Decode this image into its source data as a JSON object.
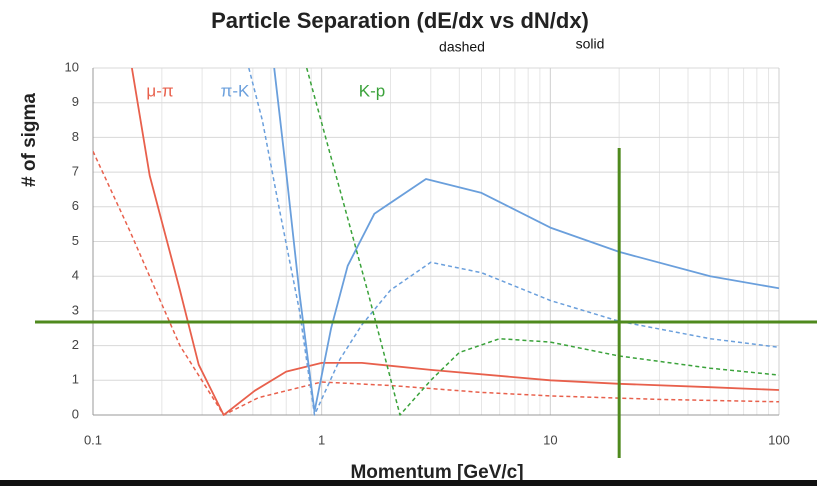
{
  "chart_data": {
    "type": "line",
    "title": "Particle Separation (dE/dx vs dN/dx)",
    "annotations": [
      "dashed",
      "solid"
    ],
    "xlabel": "Momentum [GeV/c]",
    "ylabel": "# of sigma",
    "xscale": "log",
    "xlim": [
      0.1,
      100
    ],
    "ylim": [
      0,
      10
    ],
    "xticks": [
      0.1,
      1,
      10,
      100
    ],
    "yticks": [
      0,
      1,
      2,
      3,
      4,
      5,
      6,
      7,
      8,
      9,
      10
    ],
    "grid": true,
    "minor_grid": true,
    "groups": [
      {
        "name": "μ-π",
        "color": "#e8604c",
        "solid": {
          "x": [
            0.148,
            0.177,
            0.24,
            0.29,
            0.373,
            0.51,
            0.7,
            1.0,
            1.5,
            3,
            10,
            20,
            50,
            100
          ],
          "values": [
            10,
            6.9,
            3.6,
            1.45,
            0,
            0.7,
            1.25,
            1.5,
            1.5,
            1.3,
            1.0,
            0.9,
            0.8,
            0.72
          ]
        },
        "dashed": {
          "x": [
            0.1,
            0.145,
            0.24,
            0.373,
            0.53,
            1.0,
            2,
            5,
            10,
            30,
            100
          ],
          "values": [
            7.6,
            5.3,
            2.0,
            0,
            0.5,
            0.95,
            0.85,
            0.65,
            0.55,
            0.45,
            0.38
          ]
        }
      },
      {
        "name": "π-K",
        "color": "#6a9fdc",
        "solid": {
          "x": [
            0.62,
            0.7,
            0.8,
            0.93,
            1.1,
            1.3,
            1.7,
            2.86,
            5,
            10,
            20,
            50,
            100
          ],
          "values": [
            10,
            7,
            3.5,
            0.1,
            2.5,
            4.3,
            5.8,
            6.8,
            6.4,
            5.4,
            4.7,
            4.0,
            3.65
          ]
        },
        "dashed": {
          "x": [
            0.48,
            0.55,
            0.65,
            0.8,
            0.93,
            1.2,
            1.5,
            2,
            3,
            5,
            10,
            20,
            50,
            100
          ],
          "values": [
            10,
            8.5,
            6,
            3,
            0,
            1.6,
            2.6,
            3.6,
            4.4,
            4.1,
            3.3,
            2.7,
            2.2,
            1.95
          ]
        }
      },
      {
        "name": "K-p",
        "color": "#3aa23a",
        "dashed": {
          "x": [
            0.86,
            1.2,
            1.6,
            2.2,
            3,
            4,
            6,
            10,
            20,
            50,
            100
          ],
          "values": [
            10,
            6.5,
            3.5,
            0,
            1.0,
            1.8,
            2.2,
            2.1,
            1.7,
            1.35,
            1.15
          ]
        }
      }
    ],
    "reference_lines": {
      "color": "#4f8a1e",
      "y": 2.68,
      "x": 20
    }
  }
}
